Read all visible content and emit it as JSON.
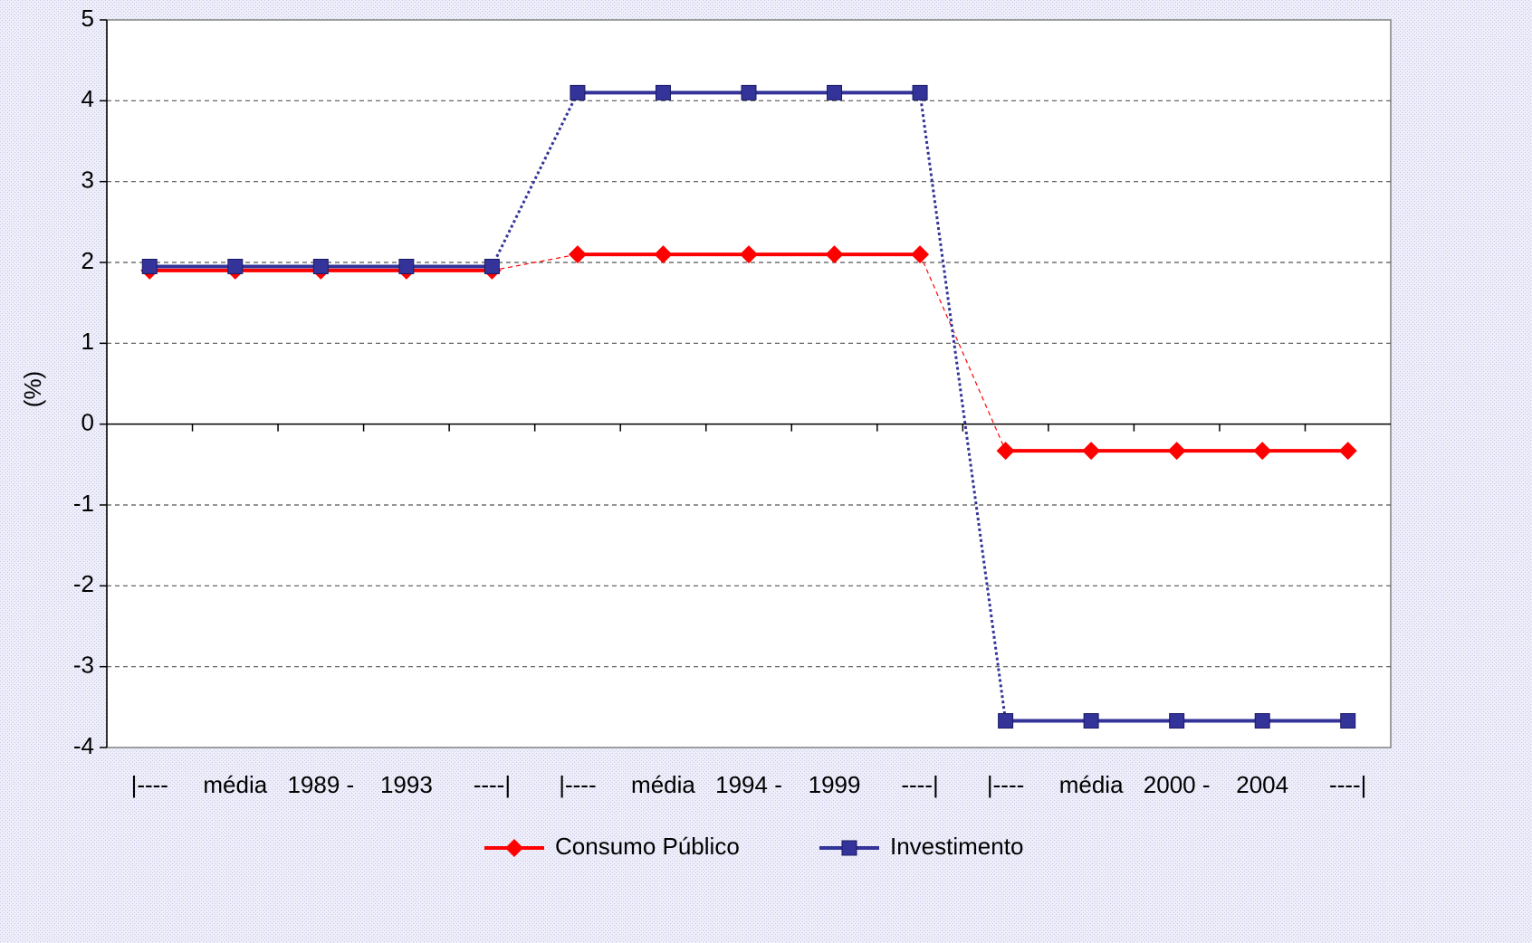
{
  "chart_data": {
    "type": "line",
    "y_label": "(%)",
    "categories": [
      "|----",
      "média",
      "1989 -",
      "1993",
      "----|",
      "|----",
      "média",
      "1994 -",
      "1999",
      "----|",
      "|----",
      "média",
      "2000 -",
      "2004",
      "----|"
    ],
    "series": [
      {
        "name": "Consumo Público",
        "color": "#ff0000",
        "marker": "diamond",
        "values": [
          1.9,
          1.9,
          1.9,
          1.9,
          1.9,
          2.1,
          2.1,
          2.1,
          2.1,
          2.1,
          -0.33,
          -0.33,
          -0.33,
          -0.33,
          -0.33
        ]
      },
      {
        "name": "Investimento",
        "color": "#333399",
        "marker": "square",
        "values": [
          1.95,
          1.95,
          1.95,
          1.95,
          1.95,
          4.1,
          4.1,
          4.1,
          4.1,
          4.1,
          -3.67,
          -3.67,
          -3.67,
          -3.67,
          -3.67
        ]
      }
    ],
    "ylim": [
      -4,
      5
    ],
    "yticks": [
      -4,
      -3,
      -2,
      -1,
      0,
      1,
      2,
      3,
      4,
      5
    ],
    "grid": true,
    "legend": "bottom"
  }
}
